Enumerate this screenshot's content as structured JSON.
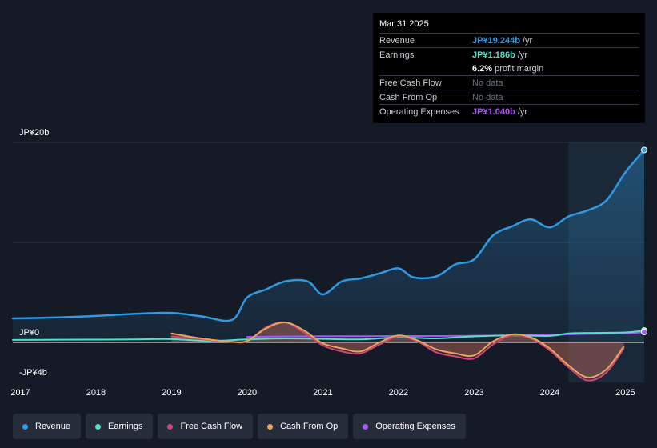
{
  "tooltip": {
    "date": "Mar 31 2025",
    "rows": [
      {
        "label": "Revenue",
        "value": "JP¥19.244b",
        "unit": "/yr",
        "color": "#2f9ae3"
      },
      {
        "label": "Earnings",
        "value": "JP¥1.186b",
        "unit": "/yr",
        "color": "#53e0c8"
      },
      {
        "label": "",
        "value": "6.2%",
        "unit": "profit margin",
        "color": "#ffffff"
      },
      {
        "label": "Free Cash Flow",
        "value": "No data"
      },
      {
        "label": "Cash From Op",
        "value": "No data"
      },
      {
        "label": "Operating Expenses",
        "value": "JP¥1.040b",
        "unit": "/yr",
        "color": "#a855f7"
      }
    ]
  },
  "colors": {
    "revenue": "#2f9ae3",
    "earnings": "#53e0c8",
    "fcf": "#d2457a",
    "cfo": "#e8a65a",
    "opex": "#a855f7",
    "background": "#151b26"
  },
  "chart_data": {
    "type": "line",
    "ylim": [
      -4,
      20
    ],
    "xlim": [
      2016.9,
      2025.25
    ],
    "y_tick_labels": [
      "JP¥20b",
      "JP¥0",
      "-JP¥4b"
    ],
    "x_tick_labels": [
      "2017",
      "2018",
      "2019",
      "2020",
      "2021",
      "2022",
      "2023",
      "2024",
      "2025"
    ],
    "highlight_range": [
      2024.25,
      2025.25
    ],
    "series": [
      {
        "name": "Revenue",
        "key": "revenue",
        "x": [
          2016.9,
          2017.5,
          2018.0,
          2018.5,
          2019.0,
          2019.4,
          2019.8,
          2020.0,
          2020.25,
          2020.5,
          2020.8,
          2021.0,
          2021.25,
          2021.5,
          2021.75,
          2022.0,
          2022.2,
          2022.5,
          2022.75,
          2023.0,
          2023.25,
          2023.5,
          2023.75,
          2024.0,
          2024.25,
          2024.5,
          2024.75,
          2025.0,
          2025.25
        ],
        "y": [
          2.4,
          2.5,
          2.65,
          2.85,
          2.95,
          2.6,
          2.25,
          4.5,
          5.3,
          6.1,
          6.1,
          4.8,
          6.1,
          6.4,
          6.9,
          7.4,
          6.5,
          6.6,
          7.8,
          8.3,
          10.7,
          11.6,
          12.3,
          11.5,
          12.6,
          13.2,
          14.2,
          17.0,
          19.244
        ]
      },
      {
        "name": "Earnings",
        "key": "earnings",
        "x": [
          2016.9,
          2017.5,
          2018.0,
          2018.5,
          2019.0,
          2019.5,
          2020.0,
          2020.5,
          2021.0,
          2021.5,
          2022.0,
          2022.5,
          2023.0,
          2023.5,
          2024.0,
          2024.25,
          2024.5,
          2025.0,
          2025.25
        ],
        "y": [
          0.25,
          0.27,
          0.28,
          0.3,
          0.33,
          0.15,
          0.3,
          0.4,
          0.35,
          0.3,
          0.5,
          0.4,
          0.6,
          0.7,
          0.65,
          0.9,
          0.95,
          1.0,
          1.186
        ]
      },
      {
        "name": "Free Cash Flow",
        "key": "fcf",
        "x": [
          2019.0,
          2019.3,
          2019.6,
          2019.8,
          2020.0,
          2020.25,
          2020.5,
          2020.75,
          2021.0,
          2021.25,
          2021.5,
          2021.75,
          2022.0,
          2022.25,
          2022.5,
          2022.75,
          2023.0,
          2023.25,
          2023.5,
          2023.75,
          2024.0,
          2024.25,
          2024.5,
          2024.75,
          2024.98
        ],
        "y": [
          0.6,
          0.4,
          0.15,
          0.05,
          0.1,
          1.5,
          2.0,
          1.0,
          -0.3,
          -0.9,
          -1.1,
          -0.2,
          0.6,
          0.1,
          -1.0,
          -1.4,
          -1.6,
          -0.2,
          0.7,
          0.4,
          -0.8,
          -2.5,
          -3.8,
          -3.0,
          -0.6
        ]
      },
      {
        "name": "Cash From Op",
        "key": "cfo",
        "x": [
          2019.0,
          2019.3,
          2019.6,
          2019.8,
          2020.0,
          2020.25,
          2020.5,
          2020.75,
          2021.0,
          2021.25,
          2021.5,
          2021.75,
          2022.0,
          2022.25,
          2022.5,
          2022.75,
          2023.0,
          2023.25,
          2023.5,
          2023.75,
          2024.0,
          2024.25,
          2024.5,
          2024.75,
          2024.98
        ],
        "y": [
          0.9,
          0.5,
          0.2,
          0.05,
          0.15,
          1.4,
          2.0,
          1.2,
          -0.1,
          -0.6,
          -0.9,
          0.0,
          0.7,
          0.2,
          -0.7,
          -1.1,
          -1.3,
          0.1,
          0.8,
          0.5,
          -0.6,
          -2.3,
          -3.5,
          -2.7,
          -0.4
        ]
      },
      {
        "name": "Operating Expenses",
        "key": "opex",
        "x": [
          2020.0,
          2020.5,
          2021.0,
          2021.5,
          2022.0,
          2022.5,
          2023.0,
          2023.5,
          2024.0,
          2024.5,
          2025.0,
          2025.25
        ],
        "y": [
          0.55,
          0.6,
          0.62,
          0.62,
          0.64,
          0.64,
          0.66,
          0.7,
          0.75,
          0.85,
          0.9,
          1.04
        ]
      }
    ]
  },
  "legend": [
    {
      "label": "Revenue",
      "color": "#2f9ae3"
    },
    {
      "label": "Earnings",
      "color": "#53e0c8"
    },
    {
      "label": "Free Cash Flow",
      "color": "#d2457a"
    },
    {
      "label": "Cash From Op",
      "color": "#e8a65a"
    },
    {
      "label": "Operating Expenses",
      "color": "#a855f7"
    }
  ]
}
